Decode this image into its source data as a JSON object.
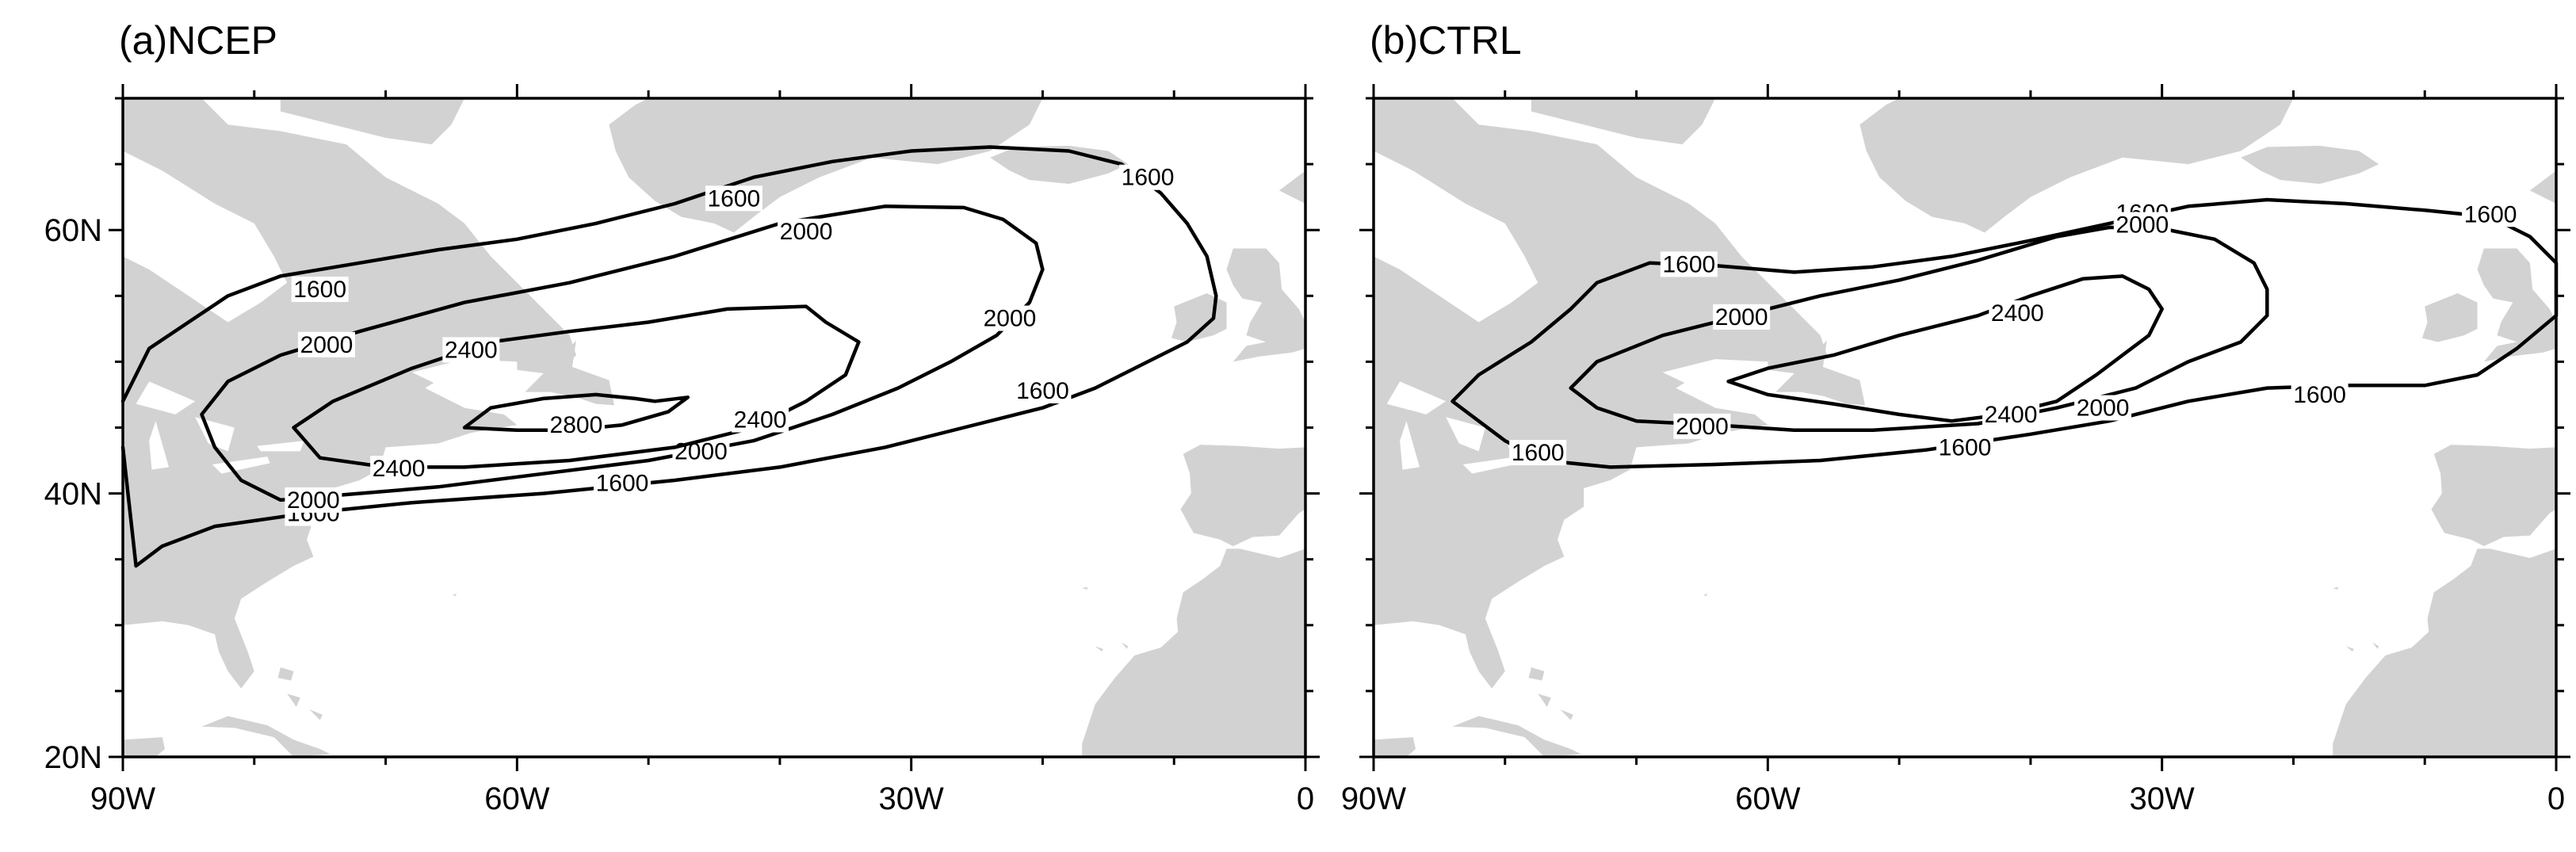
{
  "panels": [
    {
      "title": "(a)NCEP",
      "contours": [
        {
          "level": "1600",
          "points": [
            [
              -90,
              47
            ],
            [
              -88,
              51
            ],
            [
              -85,
              53
            ],
            [
              -82,
              55
            ],
            [
              -78,
              56.5
            ],
            [
              -72,
              57.5
            ],
            [
              -66,
              58.5
            ],
            [
              -60,
              59.3
            ],
            [
              -54,
              60.5
            ],
            [
              -48,
              62
            ],
            [
              -42,
              64
            ],
            [
              -36,
              65.2
            ],
            [
              -30,
              66
            ],
            [
              -24,
              66.3
            ],
            [
              -18,
              66
            ],
            [
              -14,
              65
            ],
            [
              -11,
              62.8
            ],
            [
              -9,
              60.5
            ],
            [
              -7.5,
              58
            ],
            [
              -6.8,
              55
            ],
            [
              -7,
              53.3
            ],
            [
              -9,
              51.5
            ],
            [
              -12,
              50
            ],
            [
              -16,
              48
            ],
            [
              -20,
              46.5
            ],
            [
              -26,
              45
            ],
            [
              -32,
              43.5
            ],
            [
              -40,
              42
            ],
            [
              -48,
              41
            ],
            [
              -58,
              40
            ],
            [
              -68,
              39.3
            ],
            [
              -76,
              38.5
            ],
            [
              -83,
              37.5
            ],
            [
              -87,
              36
            ],
            [
              -89,
              34.5
            ],
            [
              -90,
              43.5
            ]
          ],
          "labels": [
            [
              -43.5,
              62.4
            ],
            [
              -12,
              64
            ],
            [
              -75,
              55.5
            ],
            [
              -20,
              47.8
            ],
            [
              -75.5,
              38.5
            ],
            [
              -52,
              40.8
            ]
          ]
        },
        {
          "level": "2000",
          "points": [
            [
              -84,
              46
            ],
            [
              -82,
              48.5
            ],
            [
              -78,
              50.5
            ],
            [
              -72,
              52.3
            ],
            [
              -64,
              54.5
            ],
            [
              -56,
              56
            ],
            [
              -48,
              58
            ],
            [
              -40,
              60.5
            ],
            [
              -32,
              61.8
            ],
            [
              -26,
              61.7
            ],
            [
              -23,
              60.8
            ],
            [
              -20.5,
              59
            ],
            [
              -20,
              57
            ],
            [
              -21,
              54.5
            ],
            [
              -23.5,
              52
            ],
            [
              -27,
              50
            ],
            [
              -31,
              48
            ],
            [
              -36,
              46
            ],
            [
              -42,
              44
            ],
            [
              -50,
              42.5
            ],
            [
              -58,
              41.5
            ],
            [
              -66,
              40.5
            ],
            [
              -72,
              40
            ],
            [
              -78,
              39.5
            ],
            [
              -81,
              41
            ],
            [
              -83,
              43.5
            ],
            [
              -84,
              46
            ]
          ],
          "labels": [
            [
              -38,
              59.9
            ],
            [
              -74.5,
              51.3
            ],
            [
              -22.5,
              53.3
            ],
            [
              -46,
              43.2
            ],
            [
              -75.5,
              39.5
            ]
          ]
        },
        {
          "level": "2400",
          "points": [
            [
              -77,
              45
            ],
            [
              -74,
              47
            ],
            [
              -68,
              49.5
            ],
            [
              -62,
              51.5
            ],
            [
              -56,
              52.3
            ],
            [
              -50,
              53
            ],
            [
              -44,
              54
            ],
            [
              -38,
              54.2
            ],
            [
              -36.5,
              53
            ],
            [
              -34,
              51.5
            ],
            [
              -35,
              49
            ],
            [
              -38,
              47
            ],
            [
              -42,
              45
            ],
            [
              -48,
              43.5
            ],
            [
              -56,
              42.5
            ],
            [
              -64,
              42
            ],
            [
              -70,
              42
            ],
            [
              -75,
              42.7
            ],
            [
              -77,
              45
            ]
          ],
          "labels": [
            [
              -63.5,
              50.9
            ],
            [
              -41.5,
              45.6
            ],
            [
              -69,
              41.9
            ]
          ]
        },
        {
          "level": "2800",
          "points": [
            [
              -64,
              45
            ],
            [
              -62,
              46.5
            ],
            [
              -58,
              47.2
            ],
            [
              -54,
              47.5
            ],
            [
              -51,
              47.2
            ],
            [
              -49.5,
              47
            ],
            [
              -47,
              47.3
            ],
            [
              -48.5,
              46.2
            ],
            [
              -52,
              45.2
            ],
            [
              -56,
              44.8
            ],
            [
              -60,
              44.8
            ],
            [
              -64,
              45
            ]
          ],
          "labels": [
            [
              -55.5,
              45.2
            ]
          ]
        }
      ]
    },
    {
      "title": "(b)CTRL",
      "contours": [
        {
          "level": "1600",
          "points": [
            [
              -84,
              47
            ],
            [
              -82,
              49
            ],
            [
              -78,
              51.5
            ],
            [
              -75,
              54
            ],
            [
              -73,
              56
            ],
            [
              -69,
              57.5
            ],
            [
              -64,
              57.3
            ],
            [
              -58,
              56.8
            ],
            [
              -52,
              57.2
            ],
            [
              -46,
              58
            ],
            [
              -40,
              59.2
            ],
            [
              -34,
              60.5
            ],
            [
              -28,
              61.8
            ],
            [
              -22,
              62.3
            ],
            [
              -16,
              62
            ],
            [
              -10,
              61.5
            ],
            [
              -5,
              61
            ],
            [
              -2,
              59.5
            ],
            [
              0,
              57.5
            ],
            [
              0,
              53.5
            ],
            [
              -3,
              51
            ],
            [
              -6,
              49
            ],
            [
              -10,
              48.2
            ],
            [
              -16,
              48.2
            ],
            [
              -22,
              48
            ],
            [
              -28,
              47
            ],
            [
              -34,
              45.5
            ],
            [
              -40,
              44.5
            ],
            [
              -48,
              43.3
            ],
            [
              -56,
              42.5
            ],
            [
              -64,
              42.2
            ],
            [
              -72,
              42
            ],
            [
              -77,
              42.5
            ],
            [
              -80,
              44
            ],
            [
              -82,
              45.5
            ],
            [
              -84,
              47
            ]
          ],
          "labels": [
            [
              -31.5,
              61.3
            ],
            [
              -5,
              61.2
            ],
            [
              -66,
              57.4
            ],
            [
              -18,
              47.5
            ],
            [
              -77.5,
              43.1
            ],
            [
              -45,
              43.5
            ]
          ]
        },
        {
          "level": "2000",
          "points": [
            [
              -75,
              48
            ],
            [
              -73,
              50
            ],
            [
              -68,
              52
            ],
            [
              -62,
              53.5
            ],
            [
              -56,
              55
            ],
            [
              -50,
              56.2
            ],
            [
              -44,
              57.7
            ],
            [
              -38,
              59.5
            ],
            [
              -34,
              60.2
            ],
            [
              -30,
              60.1
            ],
            [
              -26,
              59.3
            ],
            [
              -23,
              57.5
            ],
            [
              -22,
              55.5
            ],
            [
              -22,
              53.5
            ],
            [
              -24,
              51.5
            ],
            [
              -28,
              50
            ],
            [
              -32,
              48
            ],
            [
              -38,
              46.5
            ],
            [
              -44,
              45.3
            ],
            [
              -52,
              44.8
            ],
            [
              -58,
              44.8
            ],
            [
              -64,
              45.2
            ],
            [
              -70,
              45.5
            ],
            [
              -73,
              46.5
            ],
            [
              -75,
              48
            ]
          ],
          "labels": [
            [
              -31.5,
              60.4
            ],
            [
              -62,
              53.4
            ],
            [
              -34.5,
              46.5
            ],
            [
              -65,
              45.1
            ]
          ]
        },
        {
          "level": "2400",
          "points": [
            [
              -63,
              48.5
            ],
            [
              -60,
              49.5
            ],
            [
              -55,
              50.5
            ],
            [
              -50,
              52
            ],
            [
              -44,
              53.5
            ],
            [
              -40,
              55
            ],
            [
              -36,
              56.3
            ],
            [
              -33,
              56.5
            ],
            [
              -31,
              55.5
            ],
            [
              -30,
              54
            ],
            [
              -31,
              52
            ],
            [
              -33,
              50.5
            ],
            [
              -35,
              49
            ],
            [
              -38,
              47
            ],
            [
              -42,
              46
            ],
            [
              -46,
              45.5
            ],
            [
              -50,
              46
            ],
            [
              -55,
              46.8
            ],
            [
              -60,
              47.5
            ],
            [
              -63,
              48.5
            ]
          ],
          "labels": [
            [
              -41,
              53.7
            ],
            [
              -41.5,
              46
            ]
          ]
        }
      ]
    }
  ],
  "x_ticks": [
    {
      "lon": -90,
      "label": "90W"
    },
    {
      "lon": -60,
      "label": "60W"
    },
    {
      "lon": -30,
      "label": "30W"
    },
    {
      "lon": 0,
      "label": "0"
    }
  ],
  "y_ticks": [
    {
      "lat": 20,
      "label": "20N"
    },
    {
      "lat": 40,
      "label": "40N"
    },
    {
      "lat": 60,
      "label": "60N"
    }
  ],
  "colors": {
    "land": "#d2d2d2",
    "ocean": "#ffffff",
    "contour": "#000000"
  }
}
